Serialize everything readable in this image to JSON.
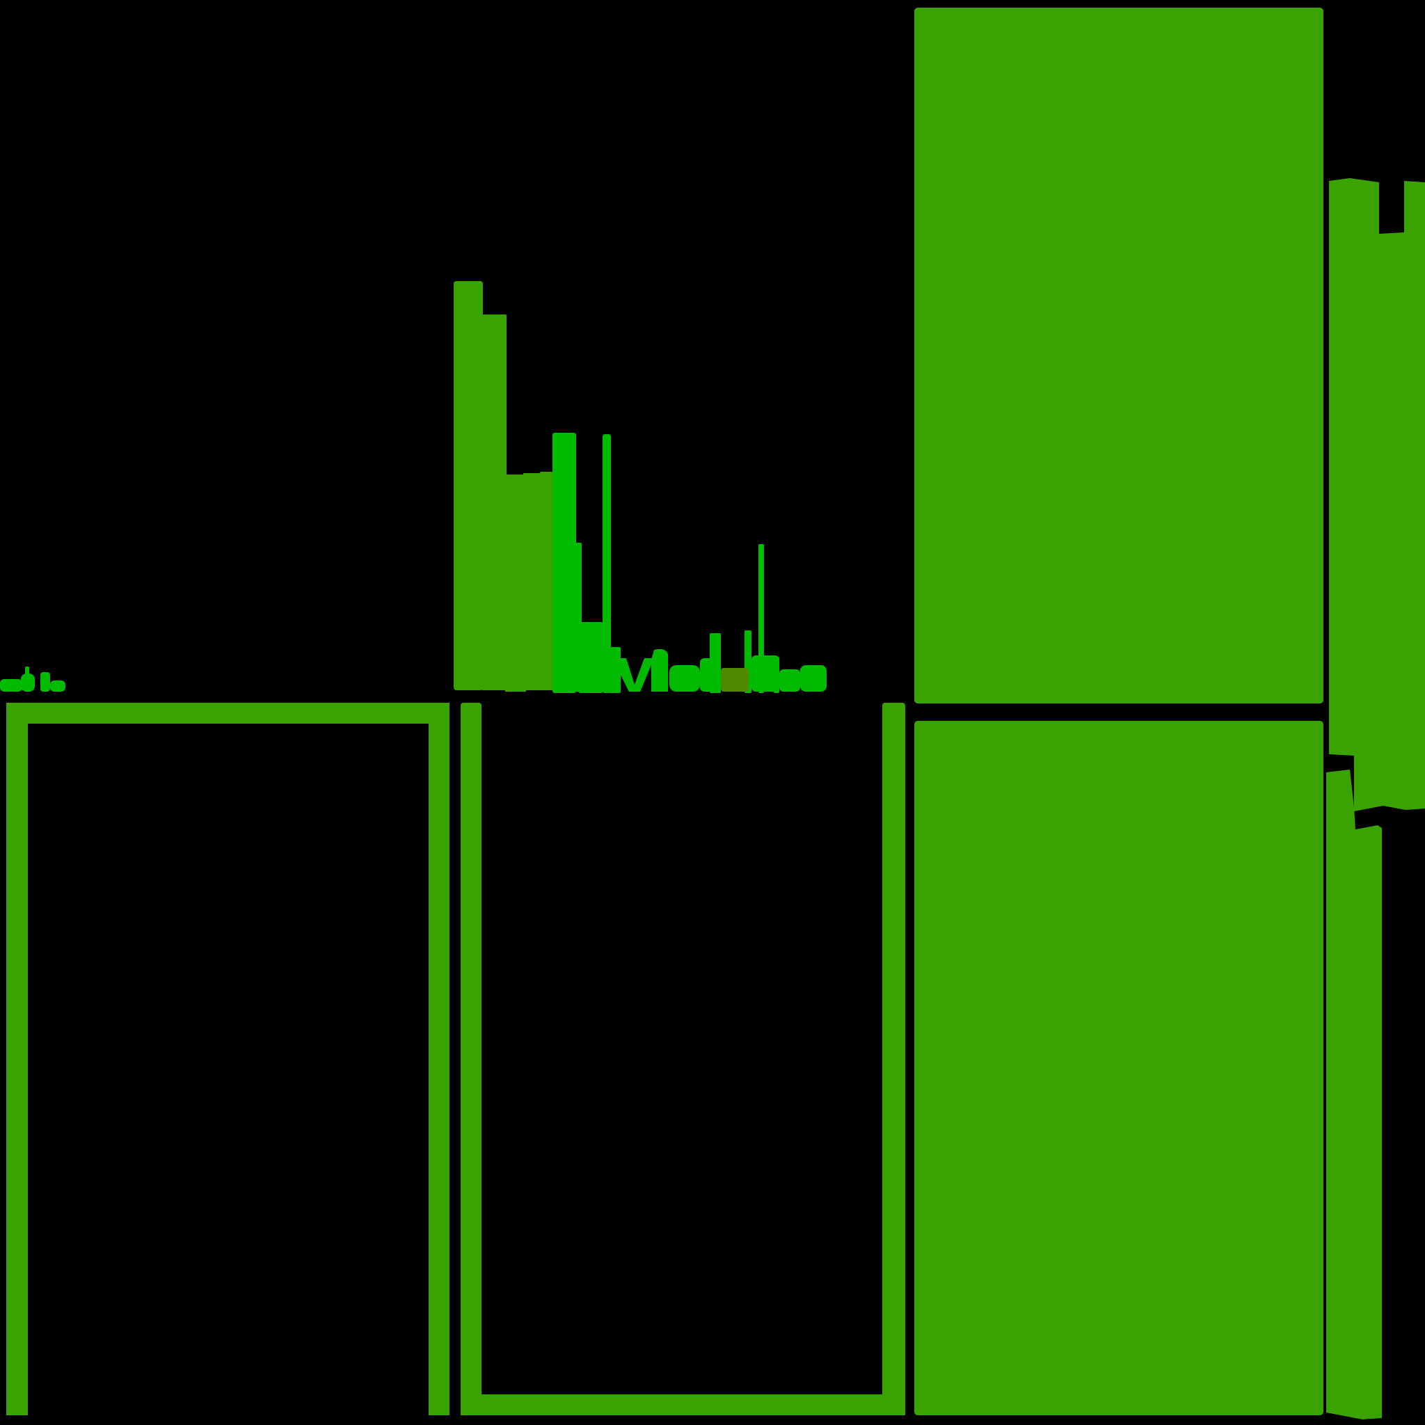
{
  "canvas": {
    "background": "#000000"
  },
  "colors": {
    "block_green": "#3aa300",
    "bright_green": "#00bb00",
    "olive_green": "#4f8a00"
  },
  "scene": {
    "frames": [
      {
        "name": "outline-frame-left"
      },
      {
        "name": "outline-frame-middle"
      }
    ],
    "panels": [
      {
        "name": "solid-panel-top-right"
      },
      {
        "name": "solid-panel-bottom-right"
      }
    ],
    "edge_shape": {
      "name": "edge-silhouette-right"
    },
    "skyline": {
      "name": "bar-skyline"
    },
    "glyph_strip": {
      "name": "glyph-strip-left"
    }
  }
}
